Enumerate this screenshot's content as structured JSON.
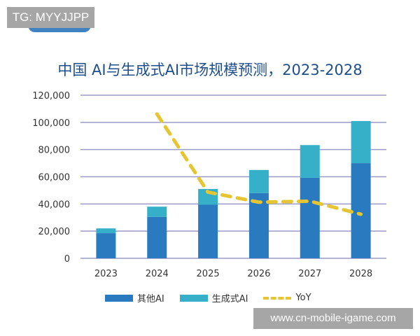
{
  "watermarks": {
    "top": "TG: MYYJJPP",
    "bottom": "www.cn-mobile-igame.com"
  },
  "chart_data": {
    "type": "bar",
    "stacked": true,
    "title": "中国 AI与生成式AI市场规模预测，2023-2028",
    "categories": [
      "2023",
      "2024",
      "2025",
      "2026",
      "2027",
      "2028"
    ],
    "series": [
      {
        "name": "其他AI",
        "values": [
          18500,
          30500,
          39400,
          48000,
          59300,
          70000
        ],
        "color": "#2a7abf"
      },
      {
        "name": "生成式AI",
        "values": [
          3500,
          7500,
          11600,
          17000,
          24000,
          31000
        ],
        "color": "#36afc9"
      }
    ],
    "line_series": {
      "name": "YoY",
      "x": [
        "2024",
        "2025",
        "2026",
        "2027",
        "2028"
      ],
      "values": [
        72,
        33,
        28,
        28.5,
        22
      ],
      "unit": "%",
      "color": "#e6c532",
      "style": "dashed",
      "axis": "secondary-hidden",
      "y2lim": [
        0,
        81.4
      ]
    },
    "ylim": [
      0,
      120000
    ],
    "yticks": [
      "0",
      "20,000",
      "40,000",
      "60,000",
      "80,000",
      "100,000",
      "120,000"
    ],
    "grid": true,
    "legend": "bottom"
  }
}
